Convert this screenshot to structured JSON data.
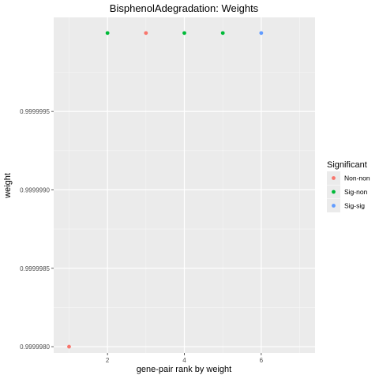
{
  "chart_data": {
    "type": "scatter",
    "title": "BisphenolAdegradation: Weights",
    "xlabel": "gene-pair rank by weight",
    "ylabel": "weight",
    "xlim": [
      0.6,
      7.4
    ],
    "ylim": [
      0.99999796,
      1.0000001
    ],
    "x_ticks": [
      2,
      4,
      6
    ],
    "x_minor_ticks": [
      1,
      3,
      5,
      7
    ],
    "y_ticks": [
      0.999998,
      0.9999985,
      0.999999,
      0.9999995
    ],
    "y_tick_labels": [
      "0.9999980",
      "0.9999985",
      "0.9999990",
      "0.9999995"
    ],
    "grid": true,
    "legend": {
      "title": "Significant",
      "placement": "right",
      "entries": [
        {
          "label": "Non-non",
          "color": "#F8766D"
        },
        {
          "label": "Sig-non",
          "color": "#00BA38"
        },
        {
          "label": "Sig-sig",
          "color": "#619CFF"
        }
      ]
    },
    "points": [
      {
        "x": 1,
        "y": 0.999998,
        "group": "Non-non"
      },
      {
        "x": 2,
        "y": 1.0,
        "group": "Sig-non"
      },
      {
        "x": 3,
        "y": 1.0,
        "group": "Non-non"
      },
      {
        "x": 4,
        "y": 1.0,
        "group": "Sig-non"
      },
      {
        "x": 5,
        "y": 1.0,
        "group": "Sig-non"
      },
      {
        "x": 6,
        "y": 1.0,
        "group": "Sig-sig"
      }
    ]
  }
}
